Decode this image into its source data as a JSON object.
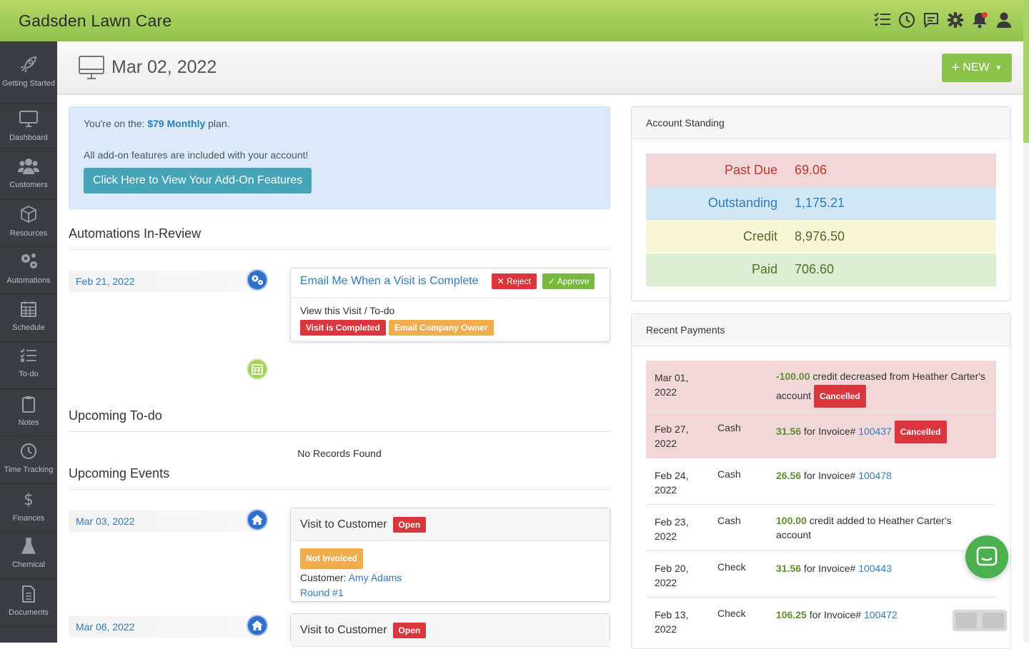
{
  "app": {
    "brand": "Gadsden Lawn Care"
  },
  "sidebar": {
    "items": [
      {
        "label": "Getting Started",
        "icon": "rocket-icon"
      },
      {
        "label": "Dashboard",
        "icon": "monitor-icon"
      },
      {
        "label": "Customers",
        "icon": "users-icon"
      },
      {
        "label": "Resources",
        "icon": "box-icon"
      },
      {
        "label": "Automations",
        "icon": "gears-icon"
      },
      {
        "label": "Schedule",
        "icon": "calendar-icon"
      },
      {
        "label": "To-do",
        "icon": "checklist-icon"
      },
      {
        "label": "Notes",
        "icon": "clipboard-icon"
      },
      {
        "label": "Time Tracking",
        "icon": "clock-icon"
      },
      {
        "label": "Finances",
        "icon": "dollar-icon"
      },
      {
        "label": "Chemical",
        "icon": "flask-icon"
      },
      {
        "label": "Documents",
        "icon": "document-icon"
      }
    ]
  },
  "header": {
    "date": "Mar 02, 2022",
    "new_label": "NEW"
  },
  "plan": {
    "prefix": "You're on the: ",
    "plan_name": "$79 Monthly",
    "suffix": " plan.",
    "included": "All add-on features are included with your account!",
    "button": "Click Here to View Your Add-On Features"
  },
  "automations": {
    "title": "Automations In-Review",
    "item": {
      "date": "Feb 21, 2022",
      "name": "Email Me When a Visit is Complete",
      "reject": "Reject",
      "approve": "Approve",
      "view": "View this Visit / To-do",
      "trigger": "Visit is Completed",
      "action": "Email Company Owner"
    }
  },
  "todo": {
    "title": "Upcoming To-do",
    "empty": "No Records Found"
  },
  "events": {
    "title": "Upcoming Events",
    "items": [
      {
        "date": "Mar 03, 2022",
        "title": "Visit to Customer",
        "status": "Open",
        "invoice": "Not Invoiced",
        "customer_label": "Customer: ",
        "customer": "Amy Adams",
        "round": "Round #1"
      },
      {
        "date": "Mar 06, 2022",
        "title": "Visit to Customer",
        "status": "Open"
      }
    ]
  },
  "standing": {
    "title": "Account Standing",
    "rows": [
      {
        "label": "Past Due",
        "value": "69.06",
        "bg": "#f2d7d9",
        "color": "#c0392b"
      },
      {
        "label": "Outstanding",
        "value": "1,175.21",
        "bg": "#d3e6f4",
        "color": "#2f7dc0"
      },
      {
        "label": "Credit",
        "value": "8,976.50",
        "bg": "#f8f5d8",
        "color": "#5b6b2a"
      },
      {
        "label": "Paid",
        "value": "706.60",
        "bg": "#dcedd3",
        "color": "#4a7a26"
      }
    ]
  },
  "payments": {
    "title": "Recent Payments",
    "rows": [
      {
        "date": "Mar 01, 2022",
        "method": "",
        "amount": "-100.00",
        "text": " credit decreased from Heather Carter's account",
        "invoice": "",
        "badge": "Cancelled",
        "bg": "#f2d7d9"
      },
      {
        "date": "Feb 27, 2022",
        "method": "Cash",
        "amount": "31.56",
        "text": " for Invoice# ",
        "invoice": "100437",
        "badge": "Cancelled",
        "bg": "#f2d7d9"
      },
      {
        "date": "Feb 24, 2022",
        "method": "Cash",
        "amount": "26.56",
        "text": " for Invoice# ",
        "invoice": "100478",
        "badge": "",
        "bg": "#ffffff"
      },
      {
        "date": "Feb 23, 2022",
        "method": "Cash",
        "amount": "100.00",
        "text": " credit added to Heather Carter's account",
        "invoice": "",
        "badge": "",
        "bg": "#ffffff"
      },
      {
        "date": "Feb 20, 2022",
        "method": "Check",
        "amount": "31.56",
        "text": " for Invoice# ",
        "invoice": "100443",
        "badge": "",
        "bg": "#ffffff"
      },
      {
        "date": "Feb 13, 2022",
        "method": "Check",
        "amount": "106.25",
        "text": " for Invoice# ",
        "invoice": "100472",
        "badge": "",
        "bg": "#ffffff"
      }
    ]
  }
}
